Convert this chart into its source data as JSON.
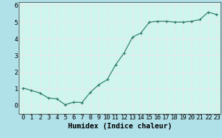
{
  "x": [
    0,
    1,
    2,
    3,
    4,
    5,
    6,
    7,
    8,
    9,
    10,
    11,
    12,
    13,
    14,
    15,
    16,
    17,
    18,
    19,
    20,
    21,
    22,
    23
  ],
  "y": [
    1.05,
    0.9,
    0.75,
    0.45,
    0.4,
    0.05,
    0.2,
    0.18,
    0.8,
    1.25,
    1.55,
    2.45,
    3.15,
    4.1,
    4.35,
    5.0,
    5.05,
    5.05,
    5.0,
    5.0,
    5.05,
    5.15,
    5.6,
    5.45
  ],
  "xlabel": "Humidex (Indice chaleur)",
  "xlim": [
    -0.5,
    23.5
  ],
  "ylim": [
    -0.5,
    6.2
  ],
  "yticks": [
    0,
    1,
    2,
    3,
    4,
    5,
    6
  ],
  "xticks": [
    0,
    1,
    2,
    3,
    4,
    5,
    6,
    7,
    8,
    9,
    10,
    11,
    12,
    13,
    14,
    15,
    16,
    17,
    18,
    19,
    20,
    21,
    22,
    23
  ],
  "line_color": "#2e7d6e",
  "marker": "+",
  "bg_color": "#b0e0e8",
  "plot_bg_color": "#cef5ee",
  "grid_color": "#e8e8e8",
  "tick_label_fontsize": 6.5,
  "xlabel_fontsize": 7.5
}
